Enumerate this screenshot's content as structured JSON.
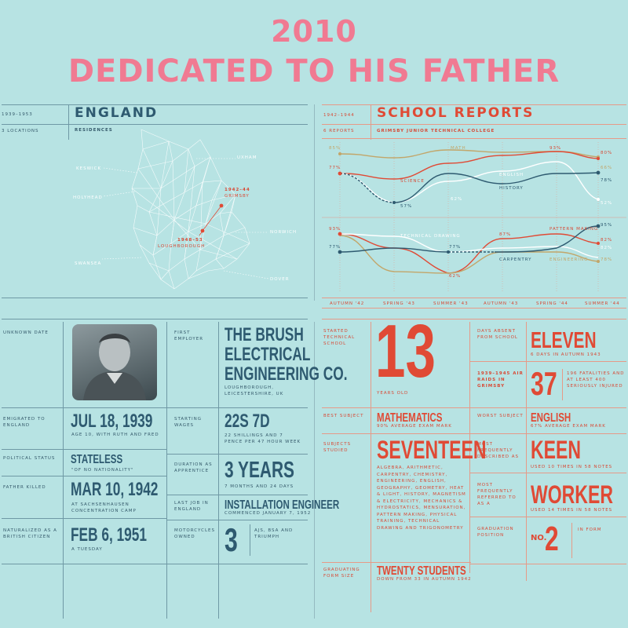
{
  "header": {
    "year": "2010",
    "dedication": "DEDICATED TO HIS FATHER"
  },
  "england": {
    "years": "1939–1953",
    "title": "ENGLAND",
    "locations_label": "3 LOCATIONS",
    "residences_label": "RESIDENCES",
    "places": {
      "uxham": "UXHAM",
      "keswick": "KESWICK",
      "holyhead": "HOLYHEAD",
      "norwich": "NORWICH",
      "swansea": "SWANSEA",
      "dover": "DOVER",
      "grimsby": "GRIMSBY",
      "grimsby_years": "1942–44",
      "loughborough": "LOUGHBOROUGH",
      "loughborough_years": "1948–53"
    }
  },
  "school_reports": {
    "years": "1942–1944",
    "title": "SCHOOL REPORTS",
    "reports_label": "6 REPORTS",
    "college": "GRIMSBY JUNIOR TECHNICAL COLLEGE",
    "terms": [
      "AUTUMN '42",
      "SPRING '43",
      "SUMMER '43",
      "AUTUMN '43",
      "SPRING '44",
      "SUMMER '44"
    ],
    "colors": {
      "math": "#c2a66a",
      "science": "#e04a35",
      "english": "#ffffff",
      "history": "#2e5a70"
    },
    "chart1_labels": {
      "v85": "85%",
      "math": "MATH",
      "v80": "80%",
      "v93": "93%",
      "v77": "77%",
      "science": "SCIENCE",
      "english": "ENGLISH",
      "history": "HISTORY",
      "v57": "57%",
      "v62": "62%",
      "v66": "66%",
      "v78": "78%",
      "v52": "52%"
    },
    "chart2_labels": {
      "v93": "93%",
      "technical_drawing": "TECHNICAL DRAWING",
      "v77a": "77%",
      "v77b": "77%",
      "v87": "87%",
      "pattern_making": "PATTERN MAKING",
      "v95": "95%",
      "carpentry": "CARPENTRY",
      "engineering": "ENGINEERING",
      "v82a": "82%",
      "v62": "62%",
      "v82b": "82%",
      "v78": "78%"
    }
  },
  "profile": {
    "unknown_date": "UNKNOWN DATE",
    "first_employer_label": "FIRST EMPLOYER",
    "employer_lines": [
      "THE BRUSH",
      "ELECTRICAL",
      "ENGINEERING CO."
    ],
    "employer_location": "LOUGHBOROUGH, LEICESTERSHIRE, UK",
    "emigrated_label": "EMIGRATED TO ENGLAND",
    "emigrated_value": "JUL 18, 1939",
    "emigrated_note": "AGE 10, WITH RUTH AND FRED",
    "wages_label": "STARTING WAGES",
    "wages_value": "22S 7D",
    "wages_note": "22 SHILLINGS AND 7 PENCE PER 47 HOUR WEEK",
    "political_label": "POLITICAL STATUS",
    "political_value": "STATELESS",
    "political_note": "\"OF NO NATIONALITY\"",
    "apprentice_label": "DURATION AS APPRENTICE",
    "apprentice_value": "3 YEARS",
    "apprentice_note": "7 MONTHS AND 24 DAYS",
    "father_label": "FATHER KILLED",
    "father_value": "MAR 10, 1942",
    "father_note": "AT SACHSENHAUSEN CONCENTRATION CAMP",
    "lastjob_label": "LAST JOB IN ENGLAND",
    "lastjob_value": "INSTALLATION ENGINEER",
    "lastjob_note": "COMMENCED JANUARY 7, 1952",
    "naturalized_label": "NATURALIZED AS A BRITISH CITIZEN",
    "naturalized_value": "FEB 6, 1951",
    "naturalized_note": "A TUESDAY",
    "motorcycles_label": "MOTORCYCLES OWNED",
    "motorcycles_value": "3",
    "motorcycles_note": "AJS, BSA AND TRIUMPH"
  },
  "school_stats": {
    "started_label": "STARTED TECHNICAL SCHOOL",
    "started_value": "13",
    "started_note": "YEARS OLD",
    "absent_label": "DAYS ABSENT FROM SCHOOL",
    "absent_value": "ELEVEN",
    "absent_note": "6 DAYS IN AUTUMN 1943",
    "raids_label": "1939–1945 AIR RAIDS IN GRIMSBY",
    "raids_value": "37",
    "raids_note": "196 FATALITIES AND AT LEAST 400 SERIOUSLY INJURED",
    "best_label": "BEST SUBJECT",
    "best_value": "MATHEMATICS",
    "best_note": "90% AVERAGE EXAM MARK",
    "worst_label": "WORST SUBJECT",
    "worst_value": "ENGLISH",
    "worst_note": "67% AVERAGE EXAM MARK",
    "studied_label": "SUBJECTS STUDIED",
    "studied_value": "SEVENTEEN",
    "studied_note": "ALGEBRA, ARITHMETIC, CARPENTRY, CHEMISTRY, ENGINEERING, ENGLISH, GEOGRAPHY, GEOMETRY, HEAT & LIGHT, HISTORY, MAGNETISM & ELECTRICITY, MECHANICS & HYDROSTATICS, MENSURATION, PATTERN MAKING, PHYSICAL TRAINING, TECHNICAL DRAWING AND TRIGONOMETRY",
    "described_label": "MOST FREQUENTLY DESCRIBED AS",
    "described_value": "KEEN",
    "described_note": "USED 10 TIMES IN 58 NOTES",
    "referred_label": "MOST FREQUENTLY REFERRED TO AS A",
    "referred_value": "WORKER",
    "referred_note": "USED 14 TIMES IN 58 NOTES",
    "graduation_label": "GRADUATION POSITION",
    "graduation_no": "NO.",
    "graduation_value": "2",
    "graduation_note": "IN FORM",
    "form_label": "GRADUATING FORM SIZE",
    "form_value": "TWENTY STUDENTS",
    "form_note": "DOWN FROM 33 IN AUTUMN 1942"
  }
}
